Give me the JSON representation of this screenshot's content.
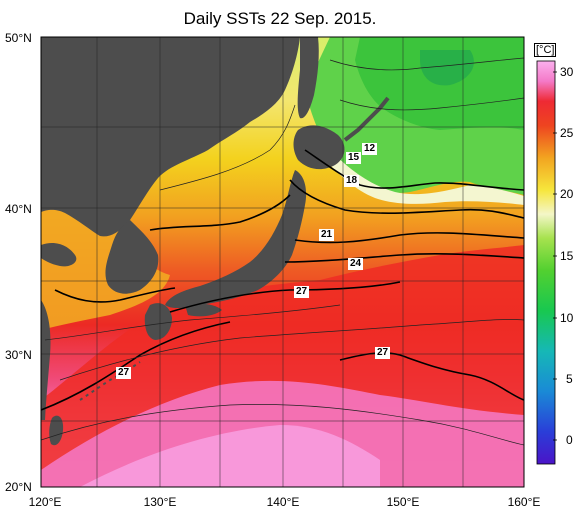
{
  "title": "Daily SSTs 22 Sep. 2015.",
  "latitudes": [
    "50°N",
    "40°N",
    "30°N",
    "20°N"
  ],
  "longitudes": [
    "120°E",
    "130°E",
    "140°E",
    "150°E",
    "160°E"
  ],
  "colorbar": {
    "unit": "[°C]",
    "ticks": [
      "30",
      "25",
      "20",
      "15",
      "10",
      "5",
      "0"
    ],
    "range": [
      -2,
      32
    ],
    "colors": [
      "#4a14c8",
      "#1c5ad8",
      "#1aa8d0",
      "#14c88a",
      "#3ccc3c",
      "#7ed83c",
      "#c8ec6a",
      "#f4f6c8",
      "#f6e63c",
      "#f2b020",
      "#f07820",
      "#ee3620",
      "#f24a7a",
      "#f78ad2",
      "#fbb0ee"
    ]
  },
  "contour_labels": {
    "c12": "12",
    "c15": "15",
    "c18": "18",
    "c21": "21",
    "c24": "24",
    "c27a": "27",
    "c27b": "27",
    "c27c": "27"
  }
}
